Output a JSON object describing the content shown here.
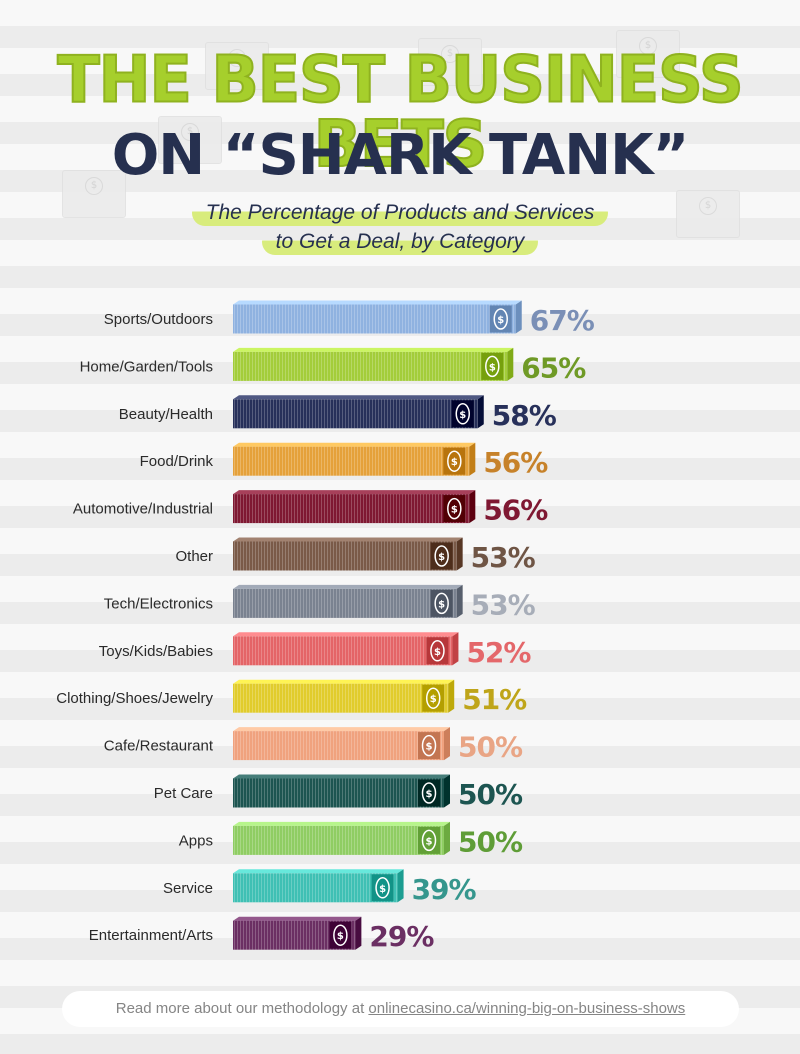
{
  "title_line1": "THE BEST BUSINESS BETS",
  "title_line2": "ON “SHARK TANK”",
  "subtitle_line1": "The Percentage of Products and Services",
  "subtitle_line2": "to Get a Deal, by Category",
  "footer": {
    "text": "Read more about our methodology at ",
    "link_text": "onlinecasino.ca/winning-big-on-business-shows"
  },
  "chart_data": {
    "type": "bar",
    "orientation": "horizontal",
    "title": "THE BEST BUSINESS BETS ON “SHARK TANK”",
    "subtitle": "The Percentage of Products and Services to Get a Deal, by Category",
    "xlim": [
      0,
      100
    ],
    "grid": false,
    "categories": [
      "Sports/Outdoors",
      "Home/Garden/Tools",
      "Beauty/Health",
      "Food/Drink",
      "Automotive/Industrial",
      "Other",
      "Tech/Electronics",
      "Toys/Kids/Babies",
      "Clothing/Shoes/Jewelry",
      "Cafe/Restaurant",
      "Pet Care",
      "Apps",
      "Service",
      "Entertainment/Arts"
    ],
    "values": [
      67,
      65,
      58,
      56,
      56,
      53,
      53,
      52,
      51,
      50,
      50,
      50,
      39,
      29
    ],
    "value_labels": [
      "67%",
      "65%",
      "58%",
      "56%",
      "56%",
      "53%",
      "53%",
      "52%",
      "51%",
      "50%",
      "50%",
      "50%",
      "39%",
      "29%"
    ],
    "bar_colors": [
      "#8fb2e0",
      "#a3cd3a",
      "#27305a",
      "#e5a13a",
      "#7f1832",
      "#7a5a48",
      "#7a8290",
      "#e46467",
      "#e1cc2c",
      "#f0a27e",
      "#1d5551",
      "#8fcd63",
      "#3fc0b4",
      "#6b2f63"
    ],
    "label_colors": [
      "#7a8fb6",
      "#6f9a26",
      "#27305a",
      "#c7822a",
      "#7f1832",
      "#6f5545",
      "#a7adb8",
      "#e4676a",
      "#bfa51a",
      "#e9a585",
      "#1d5551",
      "#5f9d37",
      "#35968d",
      "#6b2f63"
    ]
  }
}
